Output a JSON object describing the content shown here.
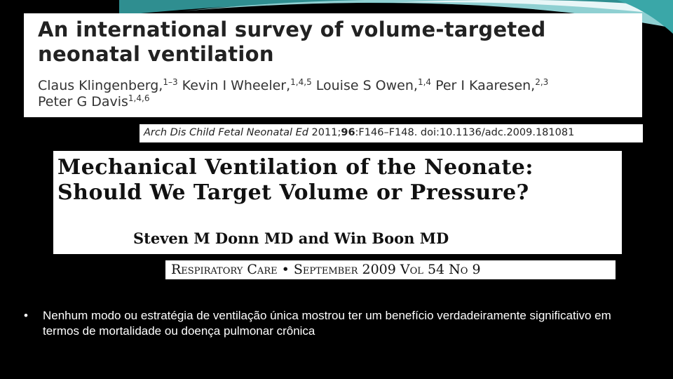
{
  "paper1": {
    "title_line1": "An international survey of volume-targeted",
    "title_line2": "neonatal ventilation",
    "authors": [
      {
        "name": "Claus Klingenberg,",
        "sup": "1–3"
      },
      {
        "name": " Kevin I Wheeler,",
        "sup": "1,4,5"
      },
      {
        "name": " Louise S Owen,",
        "sup": "1,4"
      },
      {
        "name": " Per I Kaaresen,",
        "sup": "2,3"
      },
      {
        "name": "Peter G Davis",
        "sup": "1,4,6"
      }
    ],
    "citation_journal": "Arch Dis Child Fetal Neonatal Ed",
    "citation_year": " 2011;",
    "citation_volume": "96",
    "citation_rest": ":F146–F148. doi:10.1136/adc.2009.181081"
  },
  "paper2": {
    "title_line1": "Mechanical Ventilation of the Neonate:",
    "title_line2": "Should We Target Volume or Pressure?",
    "authors": "Steven M Donn MD and Win Boon MD",
    "citation_journal": "Respiratory Care",
    "citation_separator": "•",
    "citation_date": "September 2009 Vol 54 No 9"
  },
  "bullet": {
    "marker": "•",
    "text": "Nenhum modo ou estratégia de ventilação única mostrou ter um benefício verdadeiramente significativo em termos de mortalidade ou doença pulmonar crônica"
  },
  "colors": {
    "background": "#000000",
    "swoosh_teal": "#3aa7a8",
    "swoosh_light": "#bfe6e8"
  }
}
